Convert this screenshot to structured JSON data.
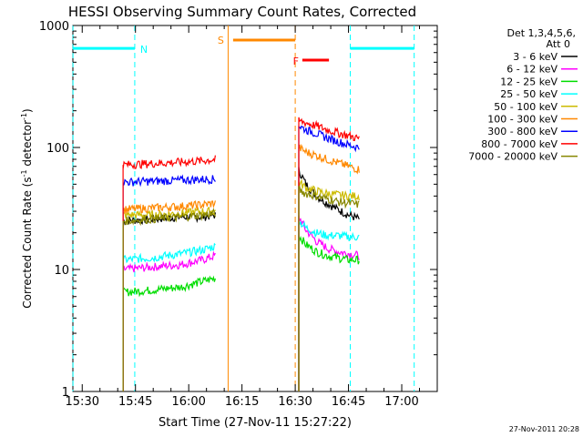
{
  "chart_data": {
    "type": "line",
    "title": "HESSI Observing Summary Count Rates, Corrected",
    "xlabel": "Start Time (27-Nov-11 15:27:22)",
    "ylabel_main": "Corrected Count Rate (s",
    "ylabel_exp1": "-1",
    "ylabel_mid": " detector",
    "ylabel_exp2": "-1",
    "ylabel_end": ")",
    "x_ticks": [
      "15:30",
      "15:45",
      "16:00",
      "16:15",
      "16:30",
      "16:45",
      "17:00"
    ],
    "x_tick_minutes": [
      30,
      45,
      60,
      75,
      90,
      105,
      120
    ],
    "xlim_minutes": [
      27.37,
      130.0
    ],
    "y_scale": "log",
    "ylim": [
      1,
      1000
    ],
    "y_ticks": [
      "1",
      "10",
      "100",
      "1000"
    ],
    "y_tick_values": [
      1,
      10,
      100,
      1000
    ],
    "legend_header": [
      "Det 1,3,4,5,6,",
      "Att 0"
    ],
    "timestamp": "27-Nov-2011 20:28",
    "flag_labels": {
      "night": "N",
      "saa": "S",
      "flare": "F"
    },
    "flags": {
      "night": [
        {
          "start": 27.4,
          "end": 44.8
        },
        {
          "start": 105.5,
          "end": 123.5
        }
      ],
      "saa": [
        {
          "start": 72.5,
          "end": 90.0
        }
      ],
      "flare": [
        {
          "start": 92.0,
          "end": 99.5
        }
      ],
      "data_gaps": [
        {
          "start": 67.5,
          "end": 91.0
        }
      ]
    },
    "series": [
      {
        "name": "3 - 6 keV",
        "color": "#000000",
        "seg1": [
          [
            41.5,
            25
          ],
          [
            50,
            26
          ],
          [
            58,
            27
          ],
          [
            64,
            27
          ],
          [
            67.5,
            28
          ]
        ],
        "seg2": [
          [
            91.0,
            65
          ],
          [
            93,
            50
          ],
          [
            96,
            40
          ],
          [
            99,
            35
          ],
          [
            102,
            31
          ],
          [
            105,
            28
          ],
          [
            108,
            26
          ]
        ]
      },
      {
        "name": "6 - 12 keV",
        "color": "#ff00ff",
        "seg1": [
          [
            41.5,
            10
          ],
          [
            50,
            10.5
          ],
          [
            58,
            11
          ],
          [
            64,
            12
          ],
          [
            67.5,
            13
          ]
        ],
        "seg2": [
          [
            91.0,
            27
          ],
          [
            93,
            21
          ],
          [
            96,
            17
          ],
          [
            99,
            15
          ],
          [
            102,
            14
          ],
          [
            105,
            13.5
          ],
          [
            108,
            13
          ]
        ]
      },
      {
        "name": "12 - 25 keV",
        "color": "#00dd00",
        "seg1": [
          [
            41.5,
            6.5
          ],
          [
            50,
            6.8
          ],
          [
            58,
            7.2
          ],
          [
            64,
            8
          ],
          [
            67.5,
            8.5
          ]
        ],
        "seg2": [
          [
            91.0,
            19
          ],
          [
            93,
            16
          ],
          [
            96,
            14
          ],
          [
            99,
            13
          ],
          [
            102,
            12.5
          ],
          [
            105,
            12
          ],
          [
            108,
            12
          ]
        ]
      },
      {
        "name": "25 - 50 keV",
        "color": "#00ffff",
        "seg1": [
          [
            41.5,
            12
          ],
          [
            50,
            12.5
          ],
          [
            58,
            13.5
          ],
          [
            64,
            14.5
          ],
          [
            67.5,
            15.5
          ]
        ],
        "seg2": [
          [
            91.0,
            25
          ],
          [
            93,
            22
          ],
          [
            96,
            20
          ],
          [
            99,
            19
          ],
          [
            102,
            19
          ],
          [
            105,
            18.5
          ],
          [
            108,
            18.5
          ]
        ]
      },
      {
        "name": "50 - 100 keV",
        "color": "#ccbb00",
        "seg1": [
          [
            41.5,
            28
          ],
          [
            50,
            28
          ],
          [
            58,
            29
          ],
          [
            64,
            30
          ],
          [
            67.5,
            30
          ]
        ],
        "seg2": [
          [
            91.0,
            52
          ],
          [
            93,
            47
          ],
          [
            96,
            44
          ],
          [
            99,
            42
          ],
          [
            102,
            41
          ],
          [
            105,
            40
          ],
          [
            108,
            40
          ]
        ]
      },
      {
        "name": "100 - 300 keV",
        "color": "#ff8800",
        "seg1": [
          [
            41.5,
            31
          ],
          [
            50,
            32
          ],
          [
            58,
            33
          ],
          [
            64,
            34
          ],
          [
            67.5,
            35
          ]
        ],
        "seg2": [
          [
            91.0,
            100
          ],
          [
            93,
            92
          ],
          [
            96,
            86
          ],
          [
            99,
            80
          ],
          [
            102,
            75
          ],
          [
            105,
            70
          ],
          [
            108,
            66
          ]
        ]
      },
      {
        "name": "300 - 800 keV",
        "color": "#0000ff",
        "seg1": [
          [
            41.5,
            52
          ],
          [
            50,
            53
          ],
          [
            58,
            54
          ],
          [
            64,
            55
          ],
          [
            67.5,
            55
          ]
        ],
        "seg2": [
          [
            91.0,
            150
          ],
          [
            93,
            140
          ],
          [
            96,
            130
          ],
          [
            99,
            120
          ],
          [
            102,
            112
          ],
          [
            105,
            105
          ],
          [
            108,
            100
          ]
        ]
      },
      {
        "name": "800 - 7000 keV",
        "color": "#ff0000",
        "seg1": [
          [
            41.5,
            72
          ],
          [
            50,
            74
          ],
          [
            58,
            76
          ],
          [
            64,
            78
          ],
          [
            67.5,
            80
          ]
        ],
        "seg2": [
          [
            91.0,
            165
          ],
          [
            93,
            160
          ],
          [
            96,
            150
          ],
          [
            99,
            140
          ],
          [
            102,
            132
          ],
          [
            105,
            125
          ],
          [
            108,
            118
          ]
        ]
      },
      {
        "name": "7000 - 20000 keV",
        "color": "#888800",
        "seg1": [
          [
            41.5,
            25
          ],
          [
            50,
            26
          ],
          [
            58,
            27
          ],
          [
            64,
            28
          ],
          [
            67.5,
            29
          ]
        ],
        "seg2": [
          [
            91.0,
            45
          ],
          [
            93,
            42
          ],
          [
            96,
            40
          ],
          [
            99,
            38
          ],
          [
            102,
            36
          ],
          [
            105,
            35
          ],
          [
            108,
            34
          ]
        ]
      }
    ]
  },
  "colors": {
    "night": "#00ffff",
    "saa": "#ff8800",
    "flare": "#ff0000",
    "axis": "#000000"
  }
}
